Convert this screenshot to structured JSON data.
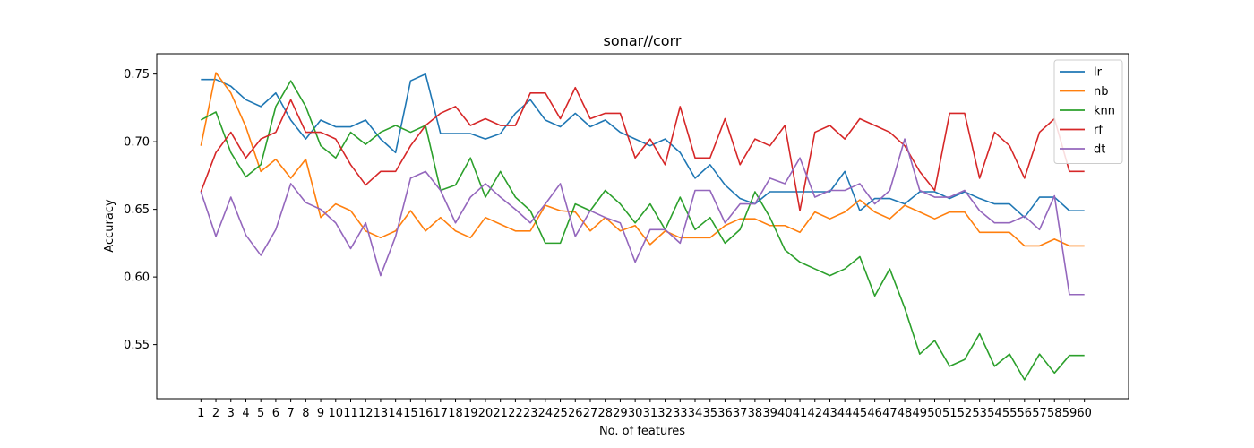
{
  "chart_data": {
    "type": "line",
    "title": "sonar//corr",
    "xlabel": "No. of features",
    "ylabel": "Accuracy",
    "x": [
      1,
      2,
      3,
      4,
      5,
      6,
      7,
      8,
      9,
      10,
      11,
      12,
      13,
      14,
      15,
      16,
      17,
      18,
      19,
      20,
      21,
      22,
      23,
      24,
      25,
      26,
      27,
      28,
      29,
      30,
      31,
      32,
      33,
      34,
      35,
      36,
      37,
      38,
      39,
      40,
      41,
      42,
      43,
      44,
      45,
      46,
      47,
      48,
      49,
      50,
      51,
      52,
      53,
      54,
      55,
      56,
      57,
      58,
      59,
      60
    ],
    "xticks": [
      "1",
      "2",
      "3",
      "4",
      "5",
      "6",
      "7",
      "8",
      "9",
      "10",
      "11",
      "12",
      "13",
      "14",
      "15",
      "16",
      "17",
      "18",
      "19",
      "20",
      "21",
      "22",
      "23",
      "24",
      "25",
      "26",
      "27",
      "28",
      "29",
      "30",
      "31",
      "32",
      "33",
      "34",
      "35",
      "36",
      "37",
      "38",
      "39",
      "40",
      "41",
      "42",
      "43",
      "44",
      "45",
      "46",
      "47",
      "48",
      "49",
      "50",
      "51",
      "52",
      "53",
      "54",
      "55",
      "56",
      "57",
      "58",
      "59",
      "60"
    ],
    "yticks": [
      "0.55",
      "0.60",
      "0.65",
      "0.70",
      "0.75"
    ],
    "ylim": [
      0.51,
      0.765
    ],
    "legend_position": "top-right",
    "grid": false,
    "series": [
      {
        "name": "lr",
        "color": "#1f77b4",
        "values": [
          0.746,
          0.746,
          0.741,
          0.731,
          0.726,
          0.736,
          0.716,
          0.702,
          0.716,
          0.711,
          0.711,
          0.716,
          0.702,
          0.692,
          0.745,
          0.75,
          0.706,
          0.706,
          0.706,
          0.702,
          0.706,
          0.721,
          0.731,
          0.716,
          0.711,
          0.721,
          0.711,
          0.716,
          0.707,
          0.702,
          0.697,
          0.702,
          0.692,
          0.673,
          0.683,
          0.668,
          0.658,
          0.654,
          0.663,
          0.663,
          0.663,
          0.663,
          0.663,
          0.678,
          0.649,
          0.658,
          0.658,
          0.654,
          0.663,
          0.663,
          0.658,
          0.663,
          0.658,
          0.654,
          0.654,
          0.644,
          0.659,
          0.659,
          0.649,
          0.649
        ]
      },
      {
        "name": "nb",
        "color": "#ff7f0e",
        "values": [
          0.697,
          0.751,
          0.736,
          0.711,
          0.678,
          0.687,
          0.673,
          0.687,
          0.644,
          0.654,
          0.649,
          0.634,
          0.629,
          0.634,
          0.649,
          0.634,
          0.644,
          0.634,
          0.629,
          0.644,
          0.639,
          0.634,
          0.634,
          0.653,
          0.649,
          0.648,
          0.634,
          0.644,
          0.634,
          0.638,
          0.624,
          0.634,
          0.629,
          0.629,
          0.629,
          0.638,
          0.643,
          0.643,
          0.638,
          0.638,
          0.633,
          0.648,
          0.643,
          0.648,
          0.657,
          0.648,
          0.643,
          0.653,
          0.648,
          0.643,
          0.648,
          0.648,
          0.633,
          0.633,
          0.633,
          0.623,
          0.623,
          0.628,
          0.623,
          0.623
        ]
      },
      {
        "name": "knn",
        "color": "#2ca02c",
        "values": [
          0.716,
          0.722,
          0.692,
          0.674,
          0.683,
          0.726,
          0.745,
          0.726,
          0.697,
          0.688,
          0.707,
          0.698,
          0.707,
          0.712,
          0.707,
          0.712,
          0.664,
          0.668,
          0.688,
          0.659,
          0.678,
          0.659,
          0.649,
          0.625,
          0.625,
          0.654,
          0.649,
          0.664,
          0.654,
          0.64,
          0.654,
          0.635,
          0.659,
          0.635,
          0.644,
          0.625,
          0.635,
          0.663,
          0.644,
          0.62,
          0.611,
          0.606,
          0.601,
          0.606,
          0.615,
          0.586,
          0.606,
          0.577,
          0.543,
          0.553,
          0.534,
          0.539,
          0.558,
          0.534,
          0.543,
          0.524,
          0.543,
          0.529,
          0.542,
          0.542
        ]
      },
      {
        "name": "rf",
        "color": "#d62728",
        "values": [
          0.663,
          0.692,
          0.707,
          0.688,
          0.702,
          0.707,
          0.731,
          0.707,
          0.707,
          0.702,
          0.683,
          0.668,
          0.678,
          0.678,
          0.697,
          0.712,
          0.721,
          0.726,
          0.712,
          0.717,
          0.712,
          0.712,
          0.736,
          0.736,
          0.717,
          0.74,
          0.717,
          0.721,
          0.721,
          0.688,
          0.702,
          0.683,
          0.726,
          0.688,
          0.688,
          0.717,
          0.683,
          0.702,
          0.697,
          0.712,
          0.649,
          0.707,
          0.712,
          0.702,
          0.717,
          0.712,
          0.707,
          0.697,
          0.678,
          0.664,
          0.721,
          0.721,
          0.673,
          0.707,
          0.697,
          0.673,
          0.707,
          0.717,
          0.678,
          0.678
        ]
      },
      {
        "name": "dt",
        "color": "#9467bd",
        "values": [
          0.663,
          0.63,
          0.659,
          0.631,
          0.616,
          0.635,
          0.669,
          0.655,
          0.65,
          0.64,
          0.621,
          0.64,
          0.601,
          0.63,
          0.673,
          0.678,
          0.664,
          0.64,
          0.659,
          0.669,
          0.659,
          0.65,
          0.64,
          0.654,
          0.669,
          0.63,
          0.649,
          0.644,
          0.64,
          0.611,
          0.635,
          0.635,
          0.625,
          0.664,
          0.664,
          0.64,
          0.654,
          0.654,
          0.673,
          0.669,
          0.688,
          0.659,
          0.664,
          0.664,
          0.669,
          0.654,
          0.664,
          0.702,
          0.664,
          0.659,
          0.659,
          0.664,
          0.649,
          0.64,
          0.64,
          0.645,
          0.635,
          0.66,
          0.587,
          0.587
        ]
      }
    ]
  }
}
